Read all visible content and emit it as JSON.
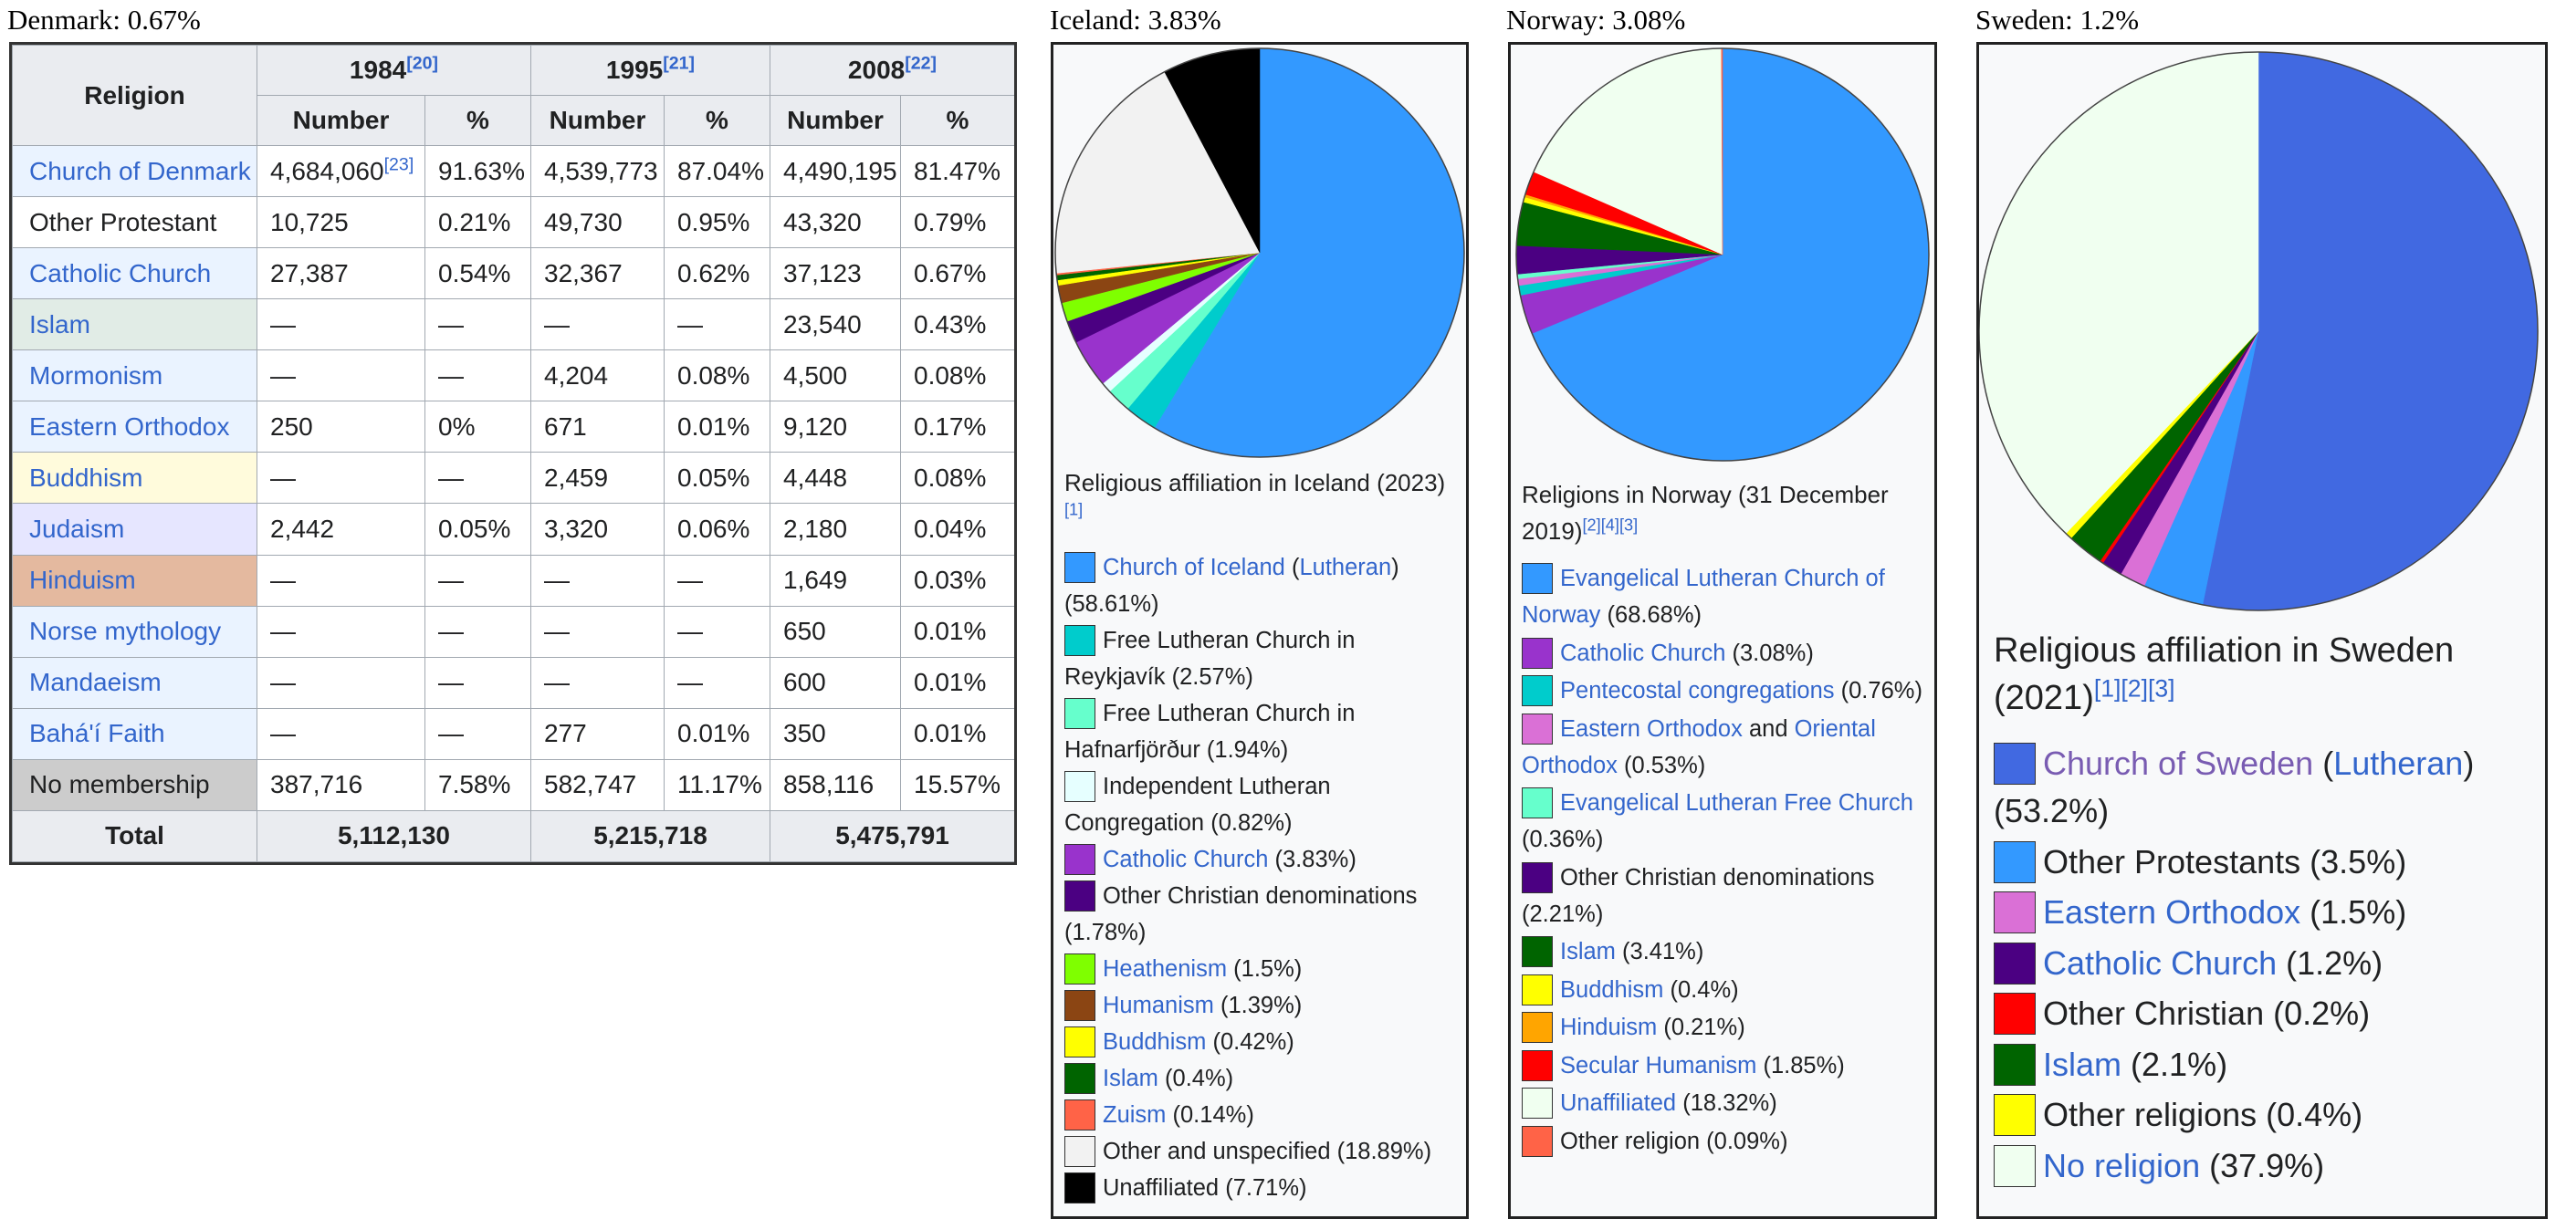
{
  "titles": {
    "denmark": "Denmark: 0.67%",
    "iceland": "Iceland: 3.83%",
    "norway": "Norway: 3.08%",
    "sweden": "Sweden: 1.2%"
  },
  "denmark_table": {
    "header": {
      "religion": "Religion",
      "years": [
        {
          "year": "1984",
          "ref": "[20]"
        },
        {
          "year": "1995",
          "ref": "[21]"
        },
        {
          "year": "2008",
          "ref": "[22]"
        }
      ],
      "number": "Number",
      "percent": "%"
    },
    "rows": [
      {
        "label": "Church of Denmark",
        "link": true,
        "bg": "#eaf3ff",
        "cells": [
          "4,684,060",
          "91.63%",
          "4,539,773",
          "87.04%",
          "4,490,195",
          "81.47%"
        ],
        "ref0": "[23]"
      },
      {
        "label": "Other Protestant",
        "link": false,
        "bg": "#ffffff",
        "cells": [
          "10,725",
          "0.21%",
          "49,730",
          "0.95%",
          "43,320",
          "0.79%"
        ]
      },
      {
        "label": "Catholic Church",
        "link": true,
        "bg": "#eaf3ff",
        "cells": [
          "27,387",
          "0.54%",
          "32,367",
          "0.62%",
          "37,123",
          "0.67%"
        ]
      },
      {
        "label": "Islam",
        "link": true,
        "bg": "#e1ece6",
        "cells": [
          "—",
          "—",
          "—",
          "—",
          "23,540",
          "0.43%"
        ]
      },
      {
        "label": "Mormonism",
        "link": true,
        "bg": "#eaf3ff",
        "cells": [
          "—",
          "—",
          "4,204",
          "0.08%",
          "4,500",
          "0.08%"
        ]
      },
      {
        "label": "Eastern Orthodox",
        "link": true,
        "bg": "#eaf3ff",
        "cells": [
          "250",
          "0%",
          "671",
          "0.01%",
          "9,120",
          "0.17%"
        ]
      },
      {
        "label": "Buddhism",
        "link": true,
        "bg": "#fffbdc",
        "cells": [
          "—",
          "—",
          "2,459",
          "0.05%",
          "4,448",
          "0.08%"
        ]
      },
      {
        "label": "Judaism",
        "link": true,
        "bg": "#e6e6ff",
        "cells": [
          "2,442",
          "0.05%",
          "3,320",
          "0.06%",
          "2,180",
          "0.04%"
        ]
      },
      {
        "label": "Hinduism",
        "link": true,
        "bg": "#e4b99f",
        "cells": [
          "—",
          "—",
          "—",
          "—",
          "1,649",
          "0.03%"
        ]
      },
      {
        "label": "Norse mythology",
        "link": true,
        "bg": "#eaf3ff",
        "cells": [
          "—",
          "—",
          "—",
          "—",
          "650",
          "0.01%"
        ]
      },
      {
        "label": "Mandaeism",
        "link": true,
        "bg": "#eaf3ff",
        "cells": [
          "—",
          "—",
          "—",
          "—",
          "600",
          "0.01%"
        ]
      },
      {
        "label": "Bahá'í Faith",
        "link": true,
        "bg": "#eaf3ff",
        "cells": [
          "—",
          "—",
          "277",
          "0.01%",
          "350",
          "0.01%"
        ]
      },
      {
        "label": "No membership",
        "link": false,
        "bg": "#cccccc",
        "cells": [
          "387,716",
          "7.58%",
          "582,747",
          "11.17%",
          "858,116",
          "15.57%"
        ]
      }
    ],
    "total": {
      "label": "Total",
      "values": [
        "5,112,130",
        "5,215,718",
        "5,475,791"
      ]
    }
  },
  "chart_data": [
    {
      "type": "pie",
      "title": "Religious affiliation in Iceland (2023)",
      "title_ref": "[1]",
      "slices": [
        {
          "name": "Church of Iceland",
          "suffix_link": "Lutheran",
          "value": 58.61,
          "color": "#3399ff",
          "link": true
        },
        {
          "name": "Free Lutheran Church in Reykjavík",
          "value": 2.57,
          "color": "#00cccc",
          "link": false
        },
        {
          "name": "Free Lutheran Church in Hafnarfjörður",
          "value": 1.94,
          "color": "#66ffcc",
          "link": false
        },
        {
          "name": "Independent Lutheran Congregation",
          "value": 0.82,
          "color": "#e6ffff",
          "link": false
        },
        {
          "name": "Catholic Church",
          "value": 3.83,
          "color": "#9933cc",
          "link": true
        },
        {
          "name": "Other Christian denominations",
          "value": 1.78,
          "color": "#4b0082",
          "link": false
        },
        {
          "name": "Heathenism",
          "value": 1.5,
          "color": "#7fff00",
          "link": true
        },
        {
          "name": "Humanism",
          "value": 1.39,
          "color": "#8b4513",
          "link": true
        },
        {
          "name": "Buddhism",
          "value": 0.42,
          "color": "#ffff00",
          "link": true
        },
        {
          "name": "Islam",
          "value": 0.4,
          "color": "#006400",
          "link": true
        },
        {
          "name": "Zuism",
          "value": 0.14,
          "color": "#ff6347",
          "link": true
        },
        {
          "name": "Other and unspecified",
          "value": 18.89,
          "color": "#f2f2f2",
          "link": false
        },
        {
          "name": "Unaffiliated",
          "value": 7.71,
          "color": "#000000",
          "link": false
        }
      ]
    },
    {
      "type": "pie",
      "title": "Religions in Norway (31 December 2019)",
      "title_ref": "[2][4][3]",
      "slices": [
        {
          "name": "Evangelical Lutheran Church of Norway",
          "value": 68.68,
          "color": "#3399ff",
          "link": true
        },
        {
          "name": "Catholic Church",
          "value": 3.08,
          "color": "#9933cc",
          "link": true
        },
        {
          "name": "Pentecostal congregations",
          "value": 0.76,
          "color": "#00cccc",
          "link": true
        },
        {
          "name": "Eastern Orthodox",
          "and_text": "and",
          "suffix_link": "Oriental Orthodox",
          "value": 0.53,
          "color": "#da70d6",
          "link": true
        },
        {
          "name": "Evangelical Lutheran Free Church",
          "value": 0.36,
          "color": "#66ffcc",
          "link": true
        },
        {
          "name": "Other Christian denominations",
          "value": 2.21,
          "color": "#4b0082",
          "link": false
        },
        {
          "name": "Islam",
          "value": 3.41,
          "color": "#006400",
          "link": true
        },
        {
          "name": "Buddhism",
          "value": 0.4,
          "color": "#ffff00",
          "link": true
        },
        {
          "name": "Hinduism",
          "value": 0.21,
          "color": "#ffa500",
          "link": true
        },
        {
          "name": "Secular Humanism",
          "value": 1.85,
          "color": "#ff0000",
          "link": true
        },
        {
          "name": "Unaffiliated",
          "value": 18.32,
          "color": "#f0fff0",
          "link": true
        },
        {
          "name": "Other religion",
          "value": 0.09,
          "color": "#ff6347",
          "link": false
        }
      ]
    },
    {
      "type": "pie",
      "title": "Religious affiliation in Sweden (2021)",
      "title_ref": "[1][2][3]",
      "slices": [
        {
          "name": "Church of Sweden",
          "suffix_link": "Lutheran",
          "value": 53.2,
          "color": "#4169e1",
          "link": true,
          "visited": true
        },
        {
          "name": "Other Protestants",
          "value": 3.5,
          "color": "#3399ff",
          "link": false
        },
        {
          "name": "Eastern Orthodox",
          "value": 1.5,
          "color": "#da70d6",
          "link": true
        },
        {
          "name": "Catholic Church",
          "value": 1.2,
          "color": "#4b0082",
          "link": true
        },
        {
          "name": "Other Christian",
          "value": 0.2,
          "color": "#ff0000",
          "link": false
        },
        {
          "name": "Islam",
          "value": 2.1,
          "color": "#006400",
          "link": true
        },
        {
          "name": "Other religions",
          "value": 0.4,
          "color": "#ffff00",
          "link": false
        },
        {
          "name": "No religion",
          "value": 37.9,
          "color": "#f0fff0",
          "link": true
        }
      ]
    }
  ]
}
